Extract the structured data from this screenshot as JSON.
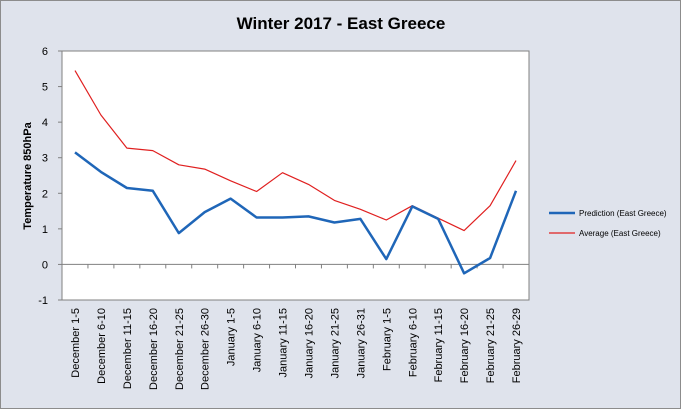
{
  "chart_data": {
    "type": "line",
    "title": "Winter 2017 - East Greece",
    "xlabel": "",
    "ylabel": "Temperature 850hPa",
    "ylim": [
      -1,
      6
    ],
    "yticks": [
      -1,
      0,
      1,
      2,
      3,
      4,
      5,
      6
    ],
    "grid": false,
    "legend_position": "right",
    "categories": [
      "December 1-5",
      "December 6-10",
      "December 11-15",
      "December 16-20",
      "December 21-25",
      "December 26-30",
      "January 1-5",
      "January 6-10",
      "January 11-15",
      "January 16-20",
      "January 21-25",
      "January 26-31",
      "February 1-5",
      "February 6-10",
      "February 11-15",
      "February 16-20",
      "February 21-25",
      "February 26-29"
    ],
    "series": [
      {
        "name": "Prediction (East Greece)",
        "color": "#1f66b8",
        "values": [
          3.15,
          2.6,
          2.15,
          2.07,
          0.88,
          1.47,
          1.85,
          1.32,
          1.32,
          1.35,
          1.18,
          1.28,
          0.15,
          1.63,
          1.28,
          -0.25,
          0.18,
          2.07
        ]
      },
      {
        "name": "Average (East Greece)",
        "color": "#e02020",
        "values": [
          5.45,
          4.2,
          3.27,
          3.2,
          2.8,
          2.68,
          2.35,
          2.05,
          2.58,
          2.25,
          1.8,
          1.55,
          1.25,
          1.65,
          1.3,
          0.95,
          1.65,
          2.92
        ]
      }
    ]
  }
}
